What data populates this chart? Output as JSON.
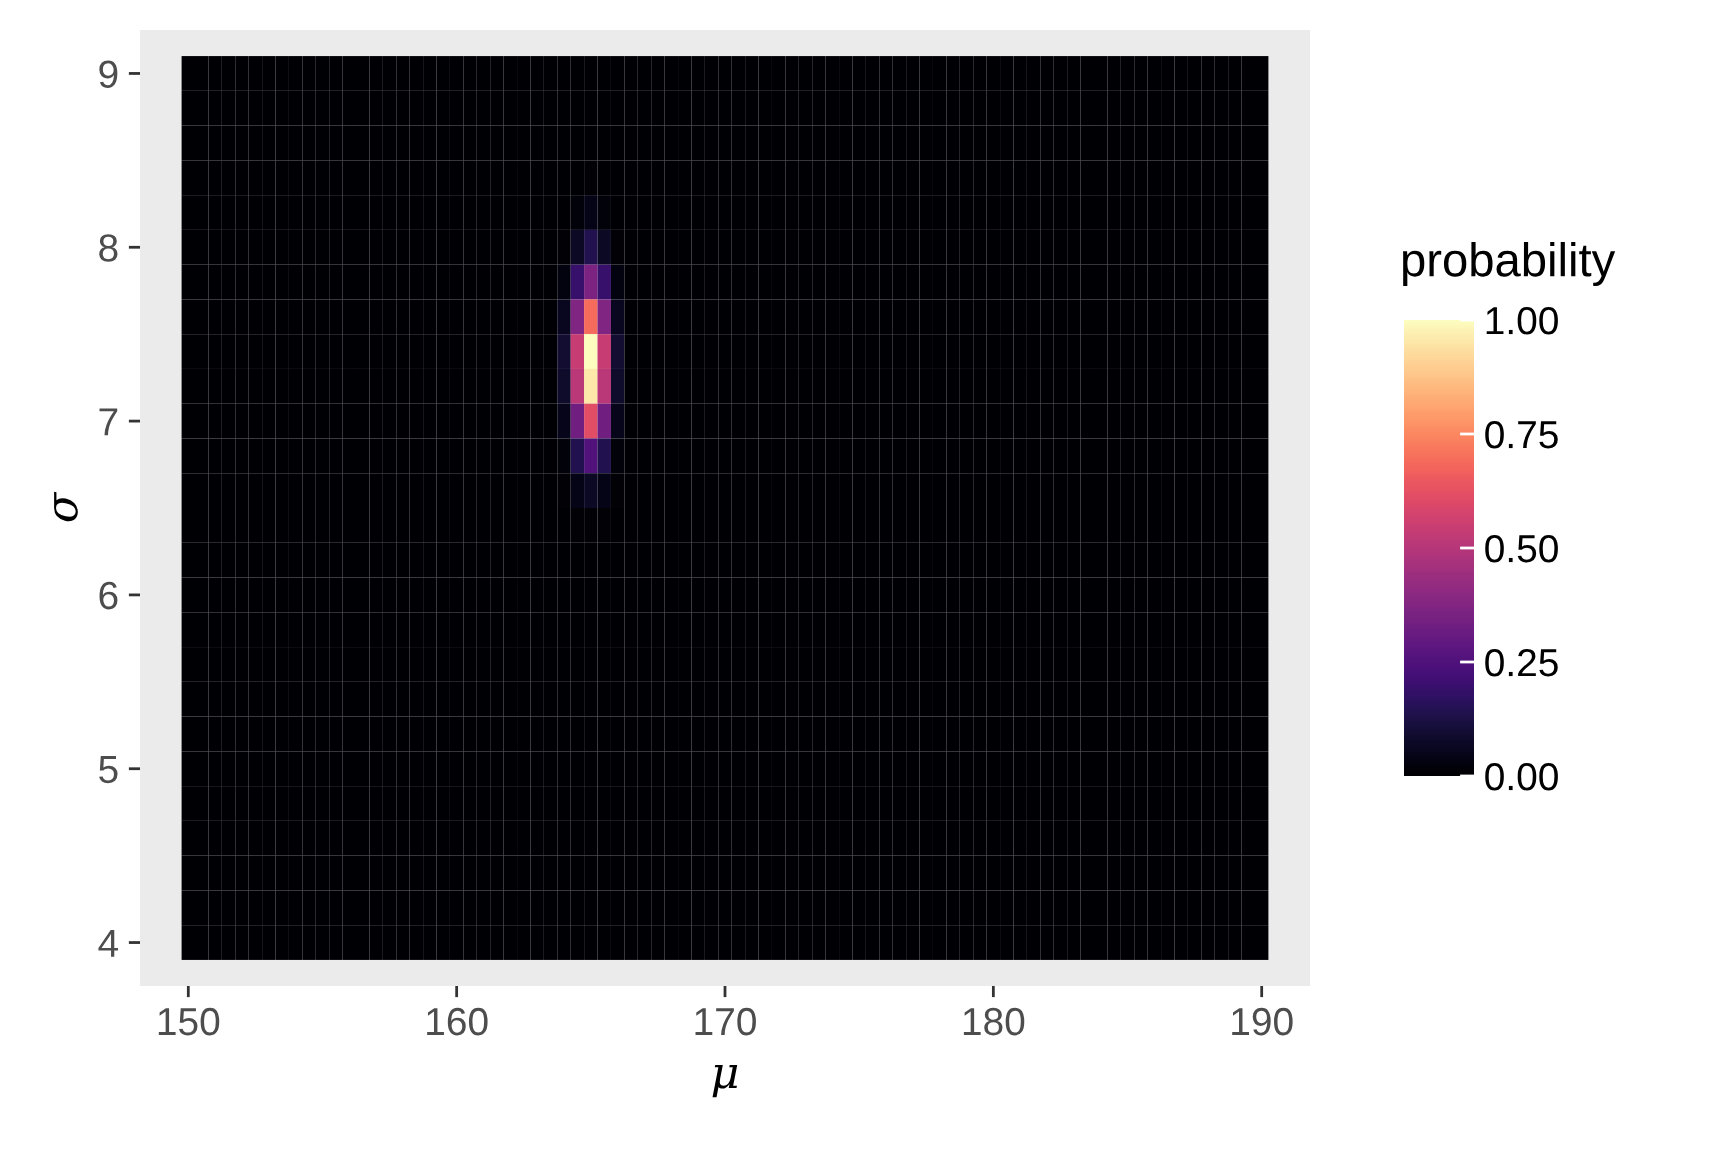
{
  "chart_data": {
    "type": "heatmap",
    "xlabel": "μ",
    "ylabel": "σ",
    "clabel": "probability",
    "x": [
      150,
      150.5,
      151,
      151.5,
      152,
      152.5,
      153,
      153.5,
      154,
      154.5,
      155,
      155.5,
      156,
      156.5,
      157,
      157.5,
      158,
      158.5,
      159,
      159.5,
      160,
      160.5,
      161,
      161.5,
      162,
      162.5,
      163,
      163.5,
      164,
      164.5,
      165,
      165.5,
      166,
      166.5,
      167,
      167.5,
      168,
      168.5,
      169,
      169.5,
      170,
      170.5,
      171,
      171.5,
      172,
      172.5,
      173,
      173.5,
      174,
      174.5,
      175,
      175.5,
      176,
      176.5,
      177,
      177.5,
      178,
      178.5,
      179,
      179.5,
      180,
      180.5,
      181,
      181.5,
      182,
      182.5,
      183,
      183.5,
      184,
      184.5,
      185,
      185.5,
      186,
      186.5,
      187,
      187.5,
      188,
      188.5,
      189,
      189.5,
      190
    ],
    "y": [
      9.0,
      8.8,
      8.6,
      8.4,
      8.2,
      8.0,
      7.8,
      7.6,
      7.4,
      7.2,
      7.0,
      6.8,
      6.6,
      6.4,
      6.2,
      6.0,
      5.8,
      5.6,
      5.4,
      5.2,
      5.0,
      4.8,
      4.6,
      4.4,
      4.2,
      4.0
    ],
    "cells": [
      [
        0,
        0,
        0,
        0,
        0,
        0,
        0,
        0,
        0,
        0,
        0,
        0,
        0,
        0,
        0,
        0,
        0,
        0,
        0,
        0,
        0,
        0,
        0,
        0,
        0,
        0,
        0,
        0,
        0,
        0,
        0,
        0,
        0,
        0,
        0,
        0,
        0,
        0,
        0,
        0,
        0,
        0,
        0,
        0,
        0,
        0,
        0,
        0,
        0,
        0,
        0,
        0,
        0,
        0,
        0,
        0,
        0,
        0,
        0,
        0,
        0,
        0,
        0,
        0,
        0,
        0,
        0,
        0,
        0,
        0,
        0,
        0,
        0,
        0,
        0,
        0,
        0,
        0,
        0,
        0,
        0
      ],
      [
        0,
        0,
        0,
        0,
        0,
        0,
        0,
        0,
        0,
        0,
        0,
        0,
        0,
        0,
        0,
        0,
        0,
        0,
        0,
        0,
        0,
        0,
        0,
        0,
        0,
        0,
        0,
        0,
        0,
        0,
        0,
        0,
        0,
        0,
        0,
        0,
        0,
        0,
        0,
        0,
        0,
        0,
        0,
        0,
        0,
        0,
        0,
        0,
        0,
        0,
        0,
        0,
        0,
        0,
        0,
        0,
        0,
        0,
        0,
        0,
        0,
        0,
        0,
        0,
        0,
        0,
        0,
        0,
        0,
        0,
        0,
        0,
        0,
        0,
        0,
        0,
        0,
        0,
        0,
        0,
        0
      ],
      [
        0,
        0,
        0,
        0,
        0,
        0,
        0,
        0,
        0,
        0,
        0,
        0,
        0,
        0,
        0,
        0,
        0,
        0,
        0,
        0,
        0,
        0,
        0,
        0,
        0,
        0,
        0,
        0,
        0,
        0,
        0,
        0,
        0,
        0,
        0,
        0,
        0,
        0,
        0,
        0,
        0,
        0,
        0,
        0,
        0,
        0,
        0,
        0,
        0,
        0,
        0,
        0,
        0,
        0,
        0,
        0,
        0,
        0,
        0,
        0,
        0,
        0,
        0,
        0,
        0,
        0,
        0,
        0,
        0,
        0,
        0,
        0,
        0,
        0,
        0,
        0,
        0,
        0,
        0,
        0,
        0
      ],
      [
        0,
        0,
        0,
        0,
        0,
        0,
        0,
        0,
        0,
        0,
        0,
        0,
        0,
        0,
        0,
        0,
        0,
        0,
        0,
        0,
        0,
        0,
        0,
        0,
        0,
        0,
        0,
        0,
        0,
        0,
        0.01,
        0,
        0,
        0,
        0,
        0,
        0,
        0,
        0,
        0,
        0,
        0,
        0,
        0,
        0,
        0,
        0,
        0,
        0,
        0,
        0,
        0,
        0,
        0,
        0,
        0,
        0,
        0,
        0,
        0,
        0,
        0,
        0,
        0,
        0,
        0,
        0,
        0,
        0,
        0,
        0,
        0,
        0,
        0,
        0,
        0,
        0,
        0,
        0,
        0,
        0
      ],
      [
        0,
        0,
        0,
        0,
        0,
        0,
        0,
        0,
        0,
        0,
        0,
        0,
        0,
        0,
        0,
        0,
        0,
        0,
        0,
        0,
        0,
        0,
        0,
        0,
        0,
        0,
        0,
        0,
        0,
        0.02,
        0.04,
        0.02,
        0,
        0,
        0,
        0,
        0,
        0,
        0,
        0,
        0,
        0,
        0,
        0,
        0,
        0,
        0,
        0,
        0,
        0,
        0,
        0,
        0,
        0,
        0,
        0,
        0,
        0,
        0,
        0,
        0,
        0,
        0,
        0,
        0,
        0,
        0,
        0,
        0,
        0,
        0,
        0,
        0,
        0,
        0,
        0,
        0,
        0,
        0,
        0,
        0
      ],
      [
        0,
        0,
        0,
        0,
        0,
        0,
        0,
        0,
        0,
        0,
        0,
        0,
        0,
        0,
        0,
        0,
        0,
        0,
        0,
        0,
        0,
        0,
        0,
        0,
        0,
        0,
        0,
        0,
        0.01,
        0.07,
        0.14,
        0.07,
        0.01,
        0,
        0,
        0,
        0,
        0,
        0,
        0,
        0,
        0,
        0,
        0,
        0,
        0,
        0,
        0,
        0,
        0,
        0,
        0,
        0,
        0,
        0,
        0,
        0,
        0,
        0,
        0,
        0,
        0,
        0,
        0,
        0,
        0,
        0,
        0,
        0,
        0,
        0,
        0,
        0,
        0,
        0,
        0,
        0,
        0,
        0,
        0,
        0
      ],
      [
        0,
        0,
        0,
        0,
        0,
        0,
        0,
        0,
        0,
        0,
        0,
        0,
        0,
        0,
        0,
        0,
        0,
        0,
        0,
        0,
        0,
        0,
        0,
        0,
        0,
        0,
        0,
        0,
        0.03,
        0.19,
        0.36,
        0.19,
        0.03,
        0,
        0,
        0,
        0,
        0,
        0,
        0,
        0,
        0,
        0,
        0,
        0,
        0,
        0,
        0,
        0,
        0,
        0,
        0,
        0,
        0,
        0,
        0,
        0,
        0,
        0,
        0,
        0,
        0,
        0,
        0,
        0,
        0,
        0,
        0,
        0,
        0,
        0,
        0,
        0,
        0,
        0,
        0,
        0,
        0,
        0,
        0,
        0
      ],
      [
        0,
        0,
        0,
        0,
        0,
        0,
        0,
        0,
        0,
        0,
        0,
        0,
        0,
        0,
        0,
        0,
        0,
        0,
        0,
        0,
        0,
        0,
        0,
        0,
        0,
        0,
        0,
        0,
        0.06,
        0.37,
        0.69,
        0.37,
        0.06,
        0,
        0,
        0,
        0,
        0,
        0,
        0,
        0,
        0,
        0,
        0,
        0,
        0,
        0,
        0,
        0,
        0,
        0,
        0,
        0,
        0,
        0,
        0,
        0,
        0,
        0,
        0,
        0,
        0,
        0,
        0,
        0,
        0,
        0,
        0,
        0,
        0,
        0,
        0,
        0,
        0,
        0,
        0,
        0,
        0,
        0,
        0,
        0
      ],
      [
        0,
        0,
        0,
        0,
        0,
        0,
        0,
        0,
        0,
        0,
        0,
        0,
        0,
        0,
        0,
        0,
        0,
        0,
        0,
        0,
        0,
        0,
        0,
        0,
        0,
        0,
        0,
        0,
        0.09,
        0.54,
        1.0,
        0.54,
        0.09,
        0,
        0,
        0,
        0,
        0,
        0,
        0,
        0,
        0,
        0,
        0,
        0,
        0,
        0,
        0,
        0,
        0,
        0,
        0,
        0,
        0,
        0,
        0,
        0,
        0,
        0,
        0,
        0,
        0,
        0,
        0,
        0,
        0,
        0,
        0,
        0,
        0,
        0,
        0,
        0,
        0,
        0,
        0,
        0,
        0,
        0,
        0,
        0
      ],
      [
        0,
        0,
        0,
        0,
        0,
        0,
        0,
        0,
        0,
        0,
        0,
        0,
        0,
        0,
        0,
        0,
        0,
        0,
        0,
        0,
        0,
        0,
        0,
        0,
        0,
        0,
        0,
        0,
        0.08,
        0.51,
        0.95,
        0.51,
        0.08,
        0,
        0,
        0,
        0,
        0,
        0,
        0,
        0,
        0,
        0,
        0,
        0,
        0,
        0,
        0,
        0,
        0,
        0,
        0,
        0,
        0,
        0,
        0,
        0,
        0,
        0,
        0,
        0,
        0,
        0,
        0,
        0,
        0,
        0,
        0,
        0,
        0,
        0,
        0,
        0,
        0,
        0,
        0,
        0,
        0,
        0,
        0,
        0
      ],
      [
        0,
        0,
        0,
        0,
        0,
        0,
        0,
        0,
        0,
        0,
        0,
        0,
        0,
        0,
        0,
        0,
        0,
        0,
        0,
        0,
        0,
        0,
        0,
        0,
        0,
        0,
        0,
        0,
        0.05,
        0.33,
        0.61,
        0.33,
        0.05,
        0,
        0,
        0,
        0,
        0,
        0,
        0,
        0,
        0,
        0,
        0,
        0,
        0,
        0,
        0,
        0,
        0,
        0,
        0,
        0,
        0,
        0,
        0,
        0,
        0,
        0,
        0,
        0,
        0,
        0,
        0,
        0,
        0,
        0,
        0,
        0,
        0,
        0,
        0,
        0,
        0,
        0,
        0,
        0,
        0,
        0,
        0,
        0
      ],
      [
        0,
        0,
        0,
        0,
        0,
        0,
        0,
        0,
        0,
        0,
        0,
        0,
        0,
        0,
        0,
        0,
        0,
        0,
        0,
        0,
        0,
        0,
        0,
        0,
        0,
        0,
        0,
        0,
        0.02,
        0.14,
        0.25,
        0.14,
        0.02,
        0,
        0,
        0,
        0,
        0,
        0,
        0,
        0,
        0,
        0,
        0,
        0,
        0,
        0,
        0,
        0,
        0,
        0,
        0,
        0,
        0,
        0,
        0,
        0,
        0,
        0,
        0,
        0,
        0,
        0,
        0,
        0,
        0,
        0,
        0,
        0,
        0,
        0,
        0,
        0,
        0,
        0,
        0,
        0,
        0,
        0,
        0,
        0
      ],
      [
        0,
        0,
        0,
        0,
        0,
        0,
        0,
        0,
        0,
        0,
        0,
        0,
        0,
        0,
        0,
        0,
        0,
        0,
        0,
        0,
        0,
        0,
        0,
        0,
        0,
        0,
        0,
        0,
        0.01,
        0.04,
        0.07,
        0.04,
        0.01,
        0,
        0,
        0,
        0,
        0,
        0,
        0,
        0,
        0,
        0,
        0,
        0,
        0,
        0,
        0,
        0,
        0,
        0,
        0,
        0,
        0,
        0,
        0,
        0,
        0,
        0,
        0,
        0,
        0,
        0,
        0,
        0,
        0,
        0,
        0,
        0,
        0,
        0,
        0,
        0,
        0,
        0,
        0,
        0,
        0,
        0,
        0,
        0
      ],
      [
        0,
        0,
        0,
        0,
        0,
        0,
        0,
        0,
        0,
        0,
        0,
        0,
        0,
        0,
        0,
        0,
        0,
        0,
        0,
        0,
        0,
        0,
        0,
        0,
        0,
        0,
        0,
        0,
        0,
        0.01,
        0.01,
        0.01,
        0,
        0,
        0,
        0,
        0,
        0,
        0,
        0,
        0,
        0,
        0,
        0,
        0,
        0,
        0,
        0,
        0,
        0,
        0,
        0,
        0,
        0,
        0,
        0,
        0,
        0,
        0,
        0,
        0,
        0,
        0,
        0,
        0,
        0,
        0,
        0,
        0,
        0,
        0,
        0,
        0,
        0,
        0,
        0,
        0,
        0,
        0,
        0,
        0
      ],
      [
        0,
        0,
        0,
        0,
        0,
        0,
        0,
        0,
        0,
        0,
        0,
        0,
        0,
        0,
        0,
        0,
        0,
        0,
        0,
        0,
        0,
        0,
        0,
        0,
        0,
        0,
        0,
        0,
        0,
        0,
        0,
        0,
        0,
        0,
        0,
        0,
        0,
        0,
        0,
        0,
        0,
        0,
        0,
        0,
        0,
        0,
        0,
        0,
        0,
        0,
        0,
        0,
        0,
        0,
        0,
        0,
        0,
        0,
        0,
        0,
        0,
        0,
        0,
        0,
        0,
        0,
        0,
        0,
        0,
        0,
        0,
        0,
        0,
        0,
        0,
        0,
        0,
        0,
        0,
        0,
        0
      ],
      [
        0,
        0,
        0,
        0,
        0,
        0,
        0,
        0,
        0,
        0,
        0,
        0,
        0,
        0,
        0,
        0,
        0,
        0,
        0,
        0,
        0,
        0,
        0,
        0,
        0,
        0,
        0,
        0,
        0,
        0,
        0,
        0,
        0,
        0,
        0,
        0,
        0,
        0,
        0,
        0,
        0,
        0,
        0,
        0,
        0,
        0,
        0,
        0,
        0,
        0,
        0,
        0,
        0,
        0,
        0,
        0,
        0,
        0,
        0,
        0,
        0,
        0,
        0,
        0,
        0,
        0,
        0,
        0,
        0,
        0,
        0,
        0,
        0,
        0,
        0,
        0,
        0,
        0,
        0,
        0,
        0
      ],
      [
        0,
        0,
        0,
        0,
        0,
        0,
        0,
        0,
        0,
        0,
        0,
        0,
        0,
        0,
        0,
        0,
        0,
        0,
        0,
        0,
        0,
        0,
        0,
        0,
        0,
        0,
        0,
        0,
        0,
        0,
        0,
        0,
        0,
        0,
        0,
        0,
        0,
        0,
        0,
        0,
        0,
        0,
        0,
        0,
        0,
        0,
        0,
        0,
        0,
        0,
        0,
        0,
        0,
        0,
        0,
        0,
        0,
        0,
        0,
        0,
        0,
        0,
        0,
        0,
        0,
        0,
        0,
        0,
        0,
        0,
        0,
        0,
        0,
        0,
        0,
        0,
        0,
        0,
        0,
        0,
        0
      ],
      [
        0,
        0,
        0,
        0,
        0,
        0,
        0,
        0,
        0,
        0,
        0,
        0,
        0,
        0,
        0,
        0,
        0,
        0,
        0,
        0,
        0,
        0,
        0,
        0,
        0,
        0,
        0,
        0,
        0,
        0,
        0,
        0,
        0,
        0,
        0,
        0,
        0,
        0,
        0,
        0,
        0,
        0,
        0,
        0,
        0,
        0,
        0,
        0,
        0,
        0,
        0,
        0,
        0,
        0,
        0,
        0,
        0,
        0,
        0,
        0,
        0,
        0,
        0,
        0,
        0,
        0,
        0,
        0,
        0,
        0,
        0,
        0,
        0,
        0,
        0,
        0,
        0,
        0,
        0,
        0,
        0
      ],
      [
        0,
        0,
        0,
        0,
        0,
        0,
        0,
        0,
        0,
        0,
        0,
        0,
        0,
        0,
        0,
        0,
        0,
        0,
        0,
        0,
        0,
        0,
        0,
        0,
        0,
        0,
        0,
        0,
        0,
        0,
        0,
        0,
        0,
        0,
        0,
        0,
        0,
        0,
        0,
        0,
        0,
        0,
        0,
        0,
        0,
        0,
        0,
        0,
        0,
        0,
        0,
        0,
        0,
        0,
        0,
        0,
        0,
        0,
        0,
        0,
        0,
        0,
        0,
        0,
        0,
        0,
        0,
        0,
        0,
        0,
        0,
        0,
        0,
        0,
        0,
        0,
        0,
        0,
        0,
        0,
        0
      ],
      [
        0,
        0,
        0,
        0,
        0,
        0,
        0,
        0,
        0,
        0,
        0,
        0,
        0,
        0,
        0,
        0,
        0,
        0,
        0,
        0,
        0,
        0,
        0,
        0,
        0,
        0,
        0,
        0,
        0,
        0,
        0,
        0,
        0,
        0,
        0,
        0,
        0,
        0,
        0,
        0,
        0,
        0,
        0,
        0,
        0,
        0,
        0,
        0,
        0,
        0,
        0,
        0,
        0,
        0,
        0,
        0,
        0,
        0,
        0,
        0,
        0,
        0,
        0,
        0,
        0,
        0,
        0,
        0,
        0,
        0,
        0,
        0,
        0,
        0,
        0,
        0,
        0,
        0,
        0,
        0,
        0
      ],
      [
        0,
        0,
        0,
        0,
        0,
        0,
        0,
        0,
        0,
        0,
        0,
        0,
        0,
        0,
        0,
        0,
        0,
        0,
        0,
        0,
        0,
        0,
        0,
        0,
        0,
        0,
        0,
        0,
        0,
        0,
        0,
        0,
        0,
        0,
        0,
        0,
        0,
        0,
        0,
        0,
        0,
        0,
        0,
        0,
        0,
        0,
        0,
        0,
        0,
        0,
        0,
        0,
        0,
        0,
        0,
        0,
        0,
        0,
        0,
        0,
        0,
        0,
        0,
        0,
        0,
        0,
        0,
        0,
        0,
        0,
        0,
        0,
        0,
        0,
        0,
        0,
        0,
        0,
        0,
        0,
        0
      ],
      [
        0,
        0,
        0,
        0,
        0,
        0,
        0,
        0,
        0,
        0,
        0,
        0,
        0,
        0,
        0,
        0,
        0,
        0,
        0,
        0,
        0,
        0,
        0,
        0,
        0,
        0,
        0,
        0,
        0,
        0,
        0,
        0,
        0,
        0,
        0,
        0,
        0,
        0,
        0,
        0,
        0,
        0,
        0,
        0,
        0,
        0,
        0,
        0,
        0,
        0,
        0,
        0,
        0,
        0,
        0,
        0,
        0,
        0,
        0,
        0,
        0,
        0,
        0,
        0,
        0,
        0,
        0,
        0,
        0,
        0,
        0,
        0,
        0,
        0,
        0,
        0,
        0,
        0,
        0,
        0,
        0
      ],
      [
        0,
        0,
        0,
        0,
        0,
        0,
        0,
        0,
        0,
        0,
        0,
        0,
        0,
        0,
        0,
        0,
        0,
        0,
        0,
        0,
        0,
        0,
        0,
        0,
        0,
        0,
        0,
        0,
        0,
        0,
        0,
        0,
        0,
        0,
        0,
        0,
        0,
        0,
        0,
        0,
        0,
        0,
        0,
        0,
        0,
        0,
        0,
        0,
        0,
        0,
        0,
        0,
        0,
        0,
        0,
        0,
        0,
        0,
        0,
        0,
        0,
        0,
        0,
        0,
        0,
        0,
        0,
        0,
        0,
        0,
        0,
        0,
        0,
        0,
        0,
        0,
        0,
        0,
        0,
        0,
        0
      ],
      [
        0,
        0,
        0,
        0,
        0,
        0,
        0,
        0,
        0,
        0,
        0,
        0,
        0,
        0,
        0,
        0,
        0,
        0,
        0,
        0,
        0,
        0,
        0,
        0,
        0,
        0,
        0,
        0,
        0,
        0,
        0,
        0,
        0,
        0,
        0,
        0,
        0,
        0,
        0,
        0,
        0,
        0,
        0,
        0,
        0,
        0,
        0,
        0,
        0,
        0,
        0,
        0,
        0,
        0,
        0,
        0,
        0,
        0,
        0,
        0,
        0,
        0,
        0,
        0,
        0,
        0,
        0,
        0,
        0,
        0,
        0,
        0,
        0,
        0,
        0,
        0,
        0,
        0,
        0,
        0,
        0
      ],
      [
        0,
        0,
        0,
        0,
        0,
        0,
        0,
        0,
        0,
        0,
        0,
        0,
        0,
        0,
        0,
        0,
        0,
        0,
        0,
        0,
        0,
        0,
        0,
        0,
        0,
        0,
        0,
        0,
        0,
        0,
        0,
        0,
        0,
        0,
        0,
        0,
        0,
        0,
        0,
        0,
        0,
        0,
        0,
        0,
        0,
        0,
        0,
        0,
        0,
        0,
        0,
        0,
        0,
        0,
        0,
        0,
        0,
        0,
        0,
        0,
        0,
        0,
        0,
        0,
        0,
        0,
        0,
        0,
        0,
        0,
        0,
        0,
        0,
        0,
        0,
        0,
        0,
        0,
        0,
        0,
        0
      ],
      [
        0,
        0,
        0,
        0,
        0,
        0,
        0,
        0,
        0,
        0,
        0,
        0,
        0,
        0,
        0,
        0,
        0,
        0,
        0,
        0,
        0,
        0,
        0,
        0,
        0,
        0,
        0,
        0,
        0,
        0,
        0,
        0,
        0,
        0,
        0,
        0,
        0,
        0,
        0,
        0,
        0,
        0,
        0,
        0,
        0,
        0,
        0,
        0,
        0,
        0,
        0,
        0,
        0,
        0,
        0,
        0,
        0,
        0,
        0,
        0,
        0,
        0,
        0,
        0,
        0,
        0,
        0,
        0,
        0,
        0,
        0,
        0,
        0,
        0,
        0,
        0,
        0,
        0,
        0,
        0,
        0
      ]
    ],
    "xlim": [
      148.2,
      191.8
    ],
    "ylim": [
      3.75,
      9.25
    ],
    "xticks": [
      150,
      160,
      170,
      180,
      190
    ],
    "yticks": [
      4,
      5,
      6,
      7,
      8,
      9
    ],
    "clim": [
      0,
      1
    ],
    "cticks": [
      {
        "value": 0,
        "label": "0.00"
      },
      {
        "value": 0.25,
        "label": "0.25"
      },
      {
        "value": 0.5,
        "label": "0.50"
      },
      {
        "value": 0.75,
        "label": "0.75"
      },
      {
        "value": 1,
        "label": "1.00"
      }
    ]
  }
}
